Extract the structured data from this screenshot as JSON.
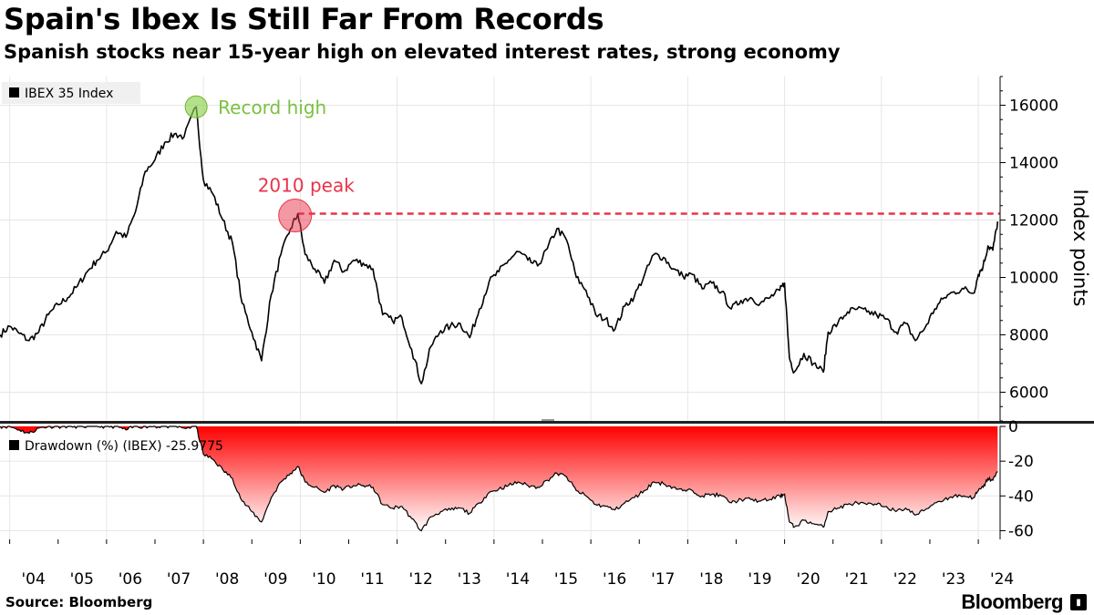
{
  "header": {
    "title": "Spain's Ibex Is Still Far From Records",
    "subtitle": "Spanish stocks near 15-year high on elevated interest rates, strong economy"
  },
  "footer": {
    "source": "Source: Bloomberg",
    "brand": "Bloomberg"
  },
  "colors": {
    "line": "#000000",
    "record": "#8fd14f",
    "record_text": "#7ac142",
    "peak": "#e8334a",
    "drawdown_top": "#ff0000",
    "drawdown_bottom": "#ffffff",
    "grid": "#e6e6e6"
  },
  "chart_data": [
    {
      "type": "line",
      "title": "",
      "legend": "IBEX 35 Index",
      "legend_position": "top-left",
      "ylabel": "Index points",
      "ylim": [
        5000,
        17000
      ],
      "yticks": [
        6000,
        8000,
        10000,
        12000,
        14000,
        16000
      ],
      "xlim": [
        2003.8,
        2024.45
      ],
      "xticks": [
        2004,
        2005,
        2006,
        2007,
        2008,
        2009,
        2010,
        2011,
        2012,
        2013,
        2014,
        2015,
        2016,
        2017,
        2018,
        2019,
        2020,
        2021,
        2022,
        2023,
        2024
      ],
      "xtick_labels": [
        "'04",
        "'05",
        "'06",
        "'07",
        "'08",
        "'09",
        "'10",
        "'11",
        "'12",
        "'13",
        "'14",
        "'15",
        "'16",
        "'17",
        "'18",
        "'19",
        "'20",
        "'21",
        "'22",
        "'23",
        "'24"
      ],
      "grid": true,
      "annotations": [
        {
          "label": "Record high",
          "x": 2007.85,
          "y": 15945
        },
        {
          "label": "2010 peak",
          "x": 2009.95,
          "y": 12222,
          "reference_line": true
        }
      ],
      "series": [
        {
          "name": "IBEX 35 Index",
          "x": [
            2003.8,
            2004.0,
            2004.2,
            2004.4,
            2004.6,
            2004.8,
            2005.0,
            2005.2,
            2005.4,
            2005.6,
            2005.8,
            2006.0,
            2006.2,
            2006.4,
            2006.6,
            2006.8,
            2007.0,
            2007.2,
            2007.4,
            2007.6,
            2007.85,
            2008.0,
            2008.2,
            2008.4,
            2008.6,
            2008.8,
            2009.0,
            2009.2,
            2009.4,
            2009.6,
            2009.8,
            2009.95,
            2010.1,
            2010.3,
            2010.5,
            2010.7,
            2010.9,
            2011.1,
            2011.3,
            2011.5,
            2011.7,
            2011.9,
            2012.1,
            2012.3,
            2012.5,
            2012.7,
            2012.9,
            2013.1,
            2013.3,
            2013.5,
            2013.7,
            2013.9,
            2014.1,
            2014.3,
            2014.5,
            2014.7,
            2014.9,
            2015.1,
            2015.3,
            2015.5,
            2015.7,
            2015.9,
            2016.1,
            2016.3,
            2016.5,
            2016.7,
            2016.9,
            2017.1,
            2017.3,
            2017.5,
            2017.7,
            2017.9,
            2018.1,
            2018.3,
            2018.5,
            2018.7,
            2018.9,
            2019.1,
            2019.3,
            2019.5,
            2019.7,
            2019.9,
            2020.0,
            2020.1,
            2020.2,
            2020.4,
            2020.6,
            2020.8,
            2020.9,
            2021.1,
            2021.3,
            2021.5,
            2021.7,
            2021.9,
            2022.1,
            2022.3,
            2022.5,
            2022.7,
            2022.9,
            2023.1,
            2023.3,
            2023.5,
            2023.7,
            2023.9,
            2024.0,
            2024.1,
            2024.2,
            2024.3,
            2024.4
          ],
          "values": [
            8000,
            8300,
            8050,
            7800,
            8100,
            8700,
            9050,
            9300,
            9700,
            10200,
            10600,
            10900,
            11600,
            11400,
            12300,
            13700,
            14100,
            14700,
            15000,
            14900,
            15945,
            13400,
            12900,
            12000,
            11200,
            9100,
            8100,
            7100,
            9400,
            10800,
            11700,
            12222,
            10800,
            10300,
            9800,
            10600,
            10200,
            10600,
            10500,
            10300,
            8700,
            8500,
            8600,
            7500,
            6300,
            7600,
            8150,
            8300,
            8400,
            7900,
            8900,
            9850,
            10200,
            10600,
            10900,
            10600,
            10400,
            11000,
            11700,
            11300,
            10000,
            9550,
            8700,
            8550,
            8200,
            9000,
            9350,
            10050,
            10800,
            10700,
            10300,
            10050,
            10100,
            9600,
            9800,
            9500,
            8900,
            9200,
            9300,
            9100,
            9300,
            9550,
            9800,
            7200,
            6700,
            7350,
            7000,
            6700,
            8100,
            8400,
            8800,
            8900,
            8800,
            8700,
            8550,
            8100,
            8400,
            7800,
            8250,
            8900,
            9300,
            9500,
            9600,
            9450,
            10100,
            10400,
            11100,
            10950,
            11950
          ]
        }
      ]
    },
    {
      "type": "area",
      "title": "",
      "legend": "Drawdown (%) (IBEX) -25.9775",
      "legend_position": "top-left",
      "ylim": [
        -65,
        0
      ],
      "yticks": [
        0,
        -20,
        -40,
        -60
      ],
      "xlim": [
        2003.8,
        2024.45
      ],
      "series": [
        {
          "name": "Drawdown (%) (IBEX)",
          "latest": -25.9775,
          "x": [
            2003.8,
            2004.0,
            2004.2,
            2004.4,
            2004.6,
            2004.8,
            2005.0,
            2005.2,
            2005.4,
            2005.6,
            2005.8,
            2006.0,
            2006.2,
            2006.4,
            2006.6,
            2006.8,
            2007.0,
            2007.2,
            2007.4,
            2007.6,
            2007.85,
            2008.0,
            2008.2,
            2008.4,
            2008.6,
            2008.8,
            2009.0,
            2009.2,
            2009.4,
            2009.6,
            2009.8,
            2009.95,
            2010.1,
            2010.3,
            2010.5,
            2010.7,
            2010.9,
            2011.1,
            2011.3,
            2011.5,
            2011.7,
            2011.9,
            2012.1,
            2012.3,
            2012.5,
            2012.7,
            2012.9,
            2013.1,
            2013.3,
            2013.5,
            2013.7,
            2013.9,
            2014.1,
            2014.3,
            2014.5,
            2014.7,
            2014.9,
            2015.1,
            2015.3,
            2015.5,
            2015.7,
            2015.9,
            2016.1,
            2016.3,
            2016.5,
            2016.7,
            2016.9,
            2017.1,
            2017.3,
            2017.5,
            2017.7,
            2017.9,
            2018.1,
            2018.3,
            2018.5,
            2018.7,
            2018.9,
            2019.1,
            2019.3,
            2019.5,
            2019.7,
            2019.9,
            2020.0,
            2020.1,
            2020.2,
            2020.4,
            2020.6,
            2020.8,
            2020.9,
            2021.1,
            2021.3,
            2021.5,
            2021.7,
            2021.9,
            2022.1,
            2022.3,
            2022.5,
            2022.7,
            2022.9,
            2023.1,
            2023.3,
            2023.5,
            2023.7,
            2023.9,
            2024.0,
            2024.1,
            2024.2,
            2024.3,
            2024.4
          ],
          "values": [
            0,
            0,
            -2,
            -4,
            -1,
            0,
            0,
            0,
            0,
            0,
            0,
            0,
            0,
            -2,
            0,
            0,
            0,
            0,
            0,
            -1,
            0,
            -16,
            -19,
            -25,
            -30,
            -43,
            -49,
            -55,
            -41,
            -32,
            -27,
            -23,
            -32,
            -35,
            -38,
            -34,
            -36,
            -34,
            -34,
            -35,
            -45,
            -47,
            -46,
            -53,
            -60,
            -52,
            -49,
            -48,
            -47,
            -50,
            -44,
            -38,
            -36,
            -34,
            -32,
            -34,
            -35,
            -31,
            -27,
            -29,
            -37,
            -40,
            -45,
            -46,
            -48,
            -44,
            -41,
            -37,
            -32,
            -33,
            -35,
            -37,
            -37,
            -40,
            -39,
            -40,
            -44,
            -42,
            -42,
            -43,
            -42,
            -40,
            -39,
            -55,
            -58,
            -54,
            -56,
            -58,
            -49,
            -47,
            -45,
            -44,
            -45,
            -45,
            -46,
            -49,
            -47,
            -51,
            -48,
            -44,
            -42,
            -40,
            -40,
            -41,
            -37,
            -35,
            -30,
            -31,
            -26
          ]
        }
      ]
    }
  ]
}
